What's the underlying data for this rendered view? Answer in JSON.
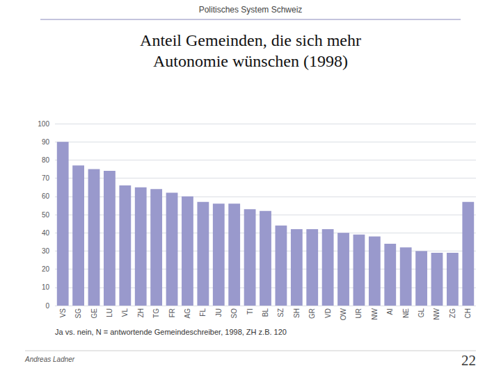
{
  "chart_data": {
    "type": "bar",
    "title": "Anteil Gemeinden, die sich mehr\nAutonomie wünschen (1998)",
    "annotations": [
      "Politisches System Schweiz",
      "Ja vs. nein, N = antwortende Gemeindeschreiber, 1998, ZH z.B. 120",
      "Andreas Ladner",
      "22"
    ],
    "categories": [
      "VS",
      "SG",
      "GE",
      "LU",
      "VL",
      "ZH",
      "TG",
      "FR",
      "AG",
      "FL",
      "JU",
      "SO",
      "TI",
      "BL",
      "SZ",
      "SH",
      "GR",
      "VD",
      "OW",
      "UR",
      "NW",
      "AI",
      "NE",
      "GL",
      "NW",
      "ZG",
      "CH"
    ],
    "values": [
      90,
      77,
      75,
      74,
      66,
      65,
      64,
      62,
      60,
      57,
      56,
      56,
      53,
      52,
      44,
      42,
      42,
      42,
      40,
      39,
      38,
      34,
      32,
      30,
      29,
      29,
      57
    ],
    "color": "#9999CC",
    "ylim": [
      0,
      100
    ],
    "yticks": [
      0,
      10,
      20,
      30,
      40,
      50,
      60,
      70,
      80,
      90,
      100
    ],
    "grid": true
  }
}
